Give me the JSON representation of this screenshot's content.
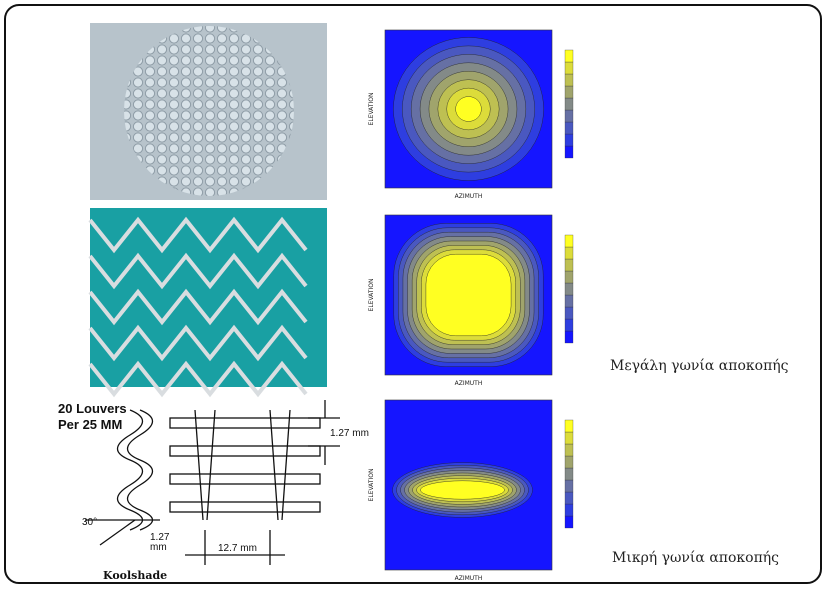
{
  "slide": {
    "koolshade": {
      "louvers_line1": "20 Louvers",
      "louvers_line2": "Per 25 MM",
      "spacing": "1.27 mm",
      "angle": "30°",
      "thickness_line1": "1.27",
      "thickness_line2": "mm",
      "width": "12.7 mm",
      "caption": "Koolshade"
    },
    "plots": [
      {
        "y_label": "ELEVATION",
        "x_label": "AZIMUTH"
      },
      {
        "y_label": "ELEVATION",
        "x_label": "AZIMUTH"
      },
      {
        "y_label": "ELEVATION",
        "x_label": "AZIMUTH"
      }
    ],
    "labels": {
      "large_cutoff": "Μεγάλη γωνία αποκοπής",
      "small_cutoff": "Μικρή γωνία αποκοπής"
    }
  }
}
